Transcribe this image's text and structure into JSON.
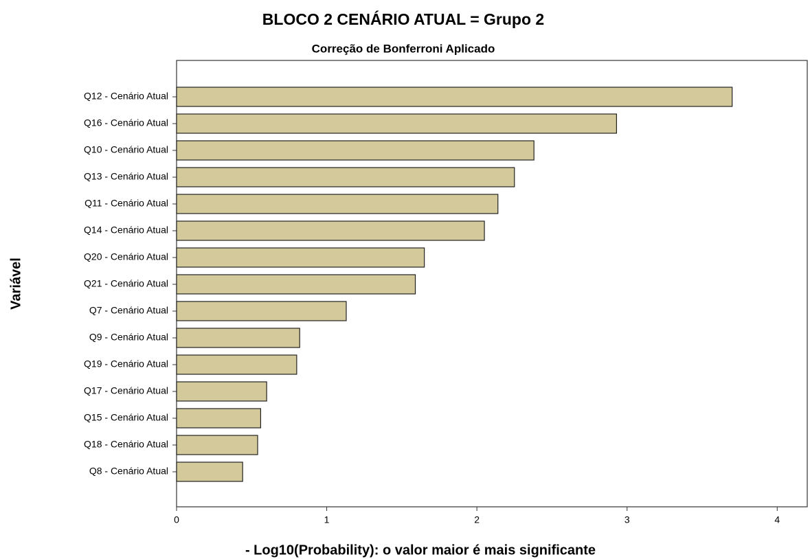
{
  "chart_data": {
    "type": "barh",
    "title": "BLOCO 2 CENÁRIO ATUAL = Grupo 2",
    "subtitle": "Correção de Bonferroni Aplicado",
    "x_label": "- Log10(Probability): o valor maior é mais significante",
    "y_label": "Variável",
    "categories": [
      "Q12 - Cenário Atual",
      "Q16 - Cenário Atual",
      "Q10 - Cenário Atual",
      "Q13 - Cenário Atual",
      "Q11 - Cenário Atual",
      "Q14 - Cenário Atual",
      "Q20 - Cenário Atual",
      "Q21 - Cenário Atual",
      "Q7 - Cenário Atual",
      "Q9 - Cenário Atual",
      "Q19 - Cenário Atual",
      "Q17 - Cenário Atual",
      "Q15 - Cenário Atual",
      "Q18 - Cenário Atual",
      "Q8 - Cenário Atual"
    ],
    "values": [
      3.7,
      2.93,
      2.38,
      2.25,
      2.14,
      2.05,
      1.65,
      1.59,
      1.13,
      0.82,
      0.8,
      0.6,
      0.56,
      0.54,
      0.44
    ],
    "color": "#d3c99a",
    "xlim": [
      0,
      4.2
    ],
    "xticks": [
      0,
      1,
      2,
      3,
      4
    ]
  }
}
